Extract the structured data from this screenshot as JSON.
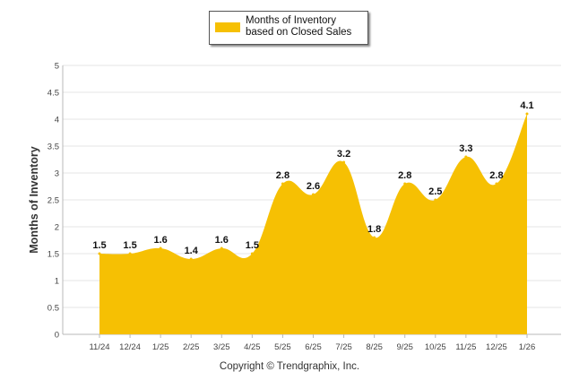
{
  "chart_data": {
    "type": "area",
    "title": "",
    "xlabel": "",
    "ylabel": "Months of Inventory",
    "ylim": [
      0,
      5
    ],
    "yticks": [
      "0",
      "0.5",
      "1",
      "1.5",
      "2",
      "2.5",
      "3",
      "3.5",
      "4",
      "4.5",
      "5"
    ],
    "grid": true,
    "legend": "top-center",
    "categories": [
      "11/24",
      "12/24",
      "1/25",
      "2/25",
      "3/25",
      "4/25",
      "5/25",
      "6/25",
      "7/25",
      "8/25",
      "9/25",
      "10/25",
      "11/25",
      "12/25",
      "1/26"
    ],
    "series": [
      {
        "name": "Months of Inventory based on Closed Sales",
        "values": [
          1.5,
          1.5,
          1.6,
          1.4,
          1.6,
          1.5,
          2.8,
          2.6,
          3.2,
          1.8,
          2.8,
          2.5,
          3.3,
          2.8,
          4.1
        ],
        "labels": [
          "1.5",
          "1.5",
          "1.6",
          "1.4",
          "1.6",
          "1.5",
          "2.8",
          "2.6",
          "3.2",
          "1.8",
          "2.8",
          "2.5",
          "3.3",
          "2.8",
          "4.1"
        ],
        "color": "#F6C003"
      }
    ]
  },
  "legend": {
    "label": "Months of Inventory based on Closed Sales"
  },
  "footer": {
    "copyright": "Copyright © Trendgraphix, Inc."
  },
  "colors": {
    "fill": "#F6C003",
    "grid": "#E6E6E6",
    "axis": "#B8B8B8"
  }
}
